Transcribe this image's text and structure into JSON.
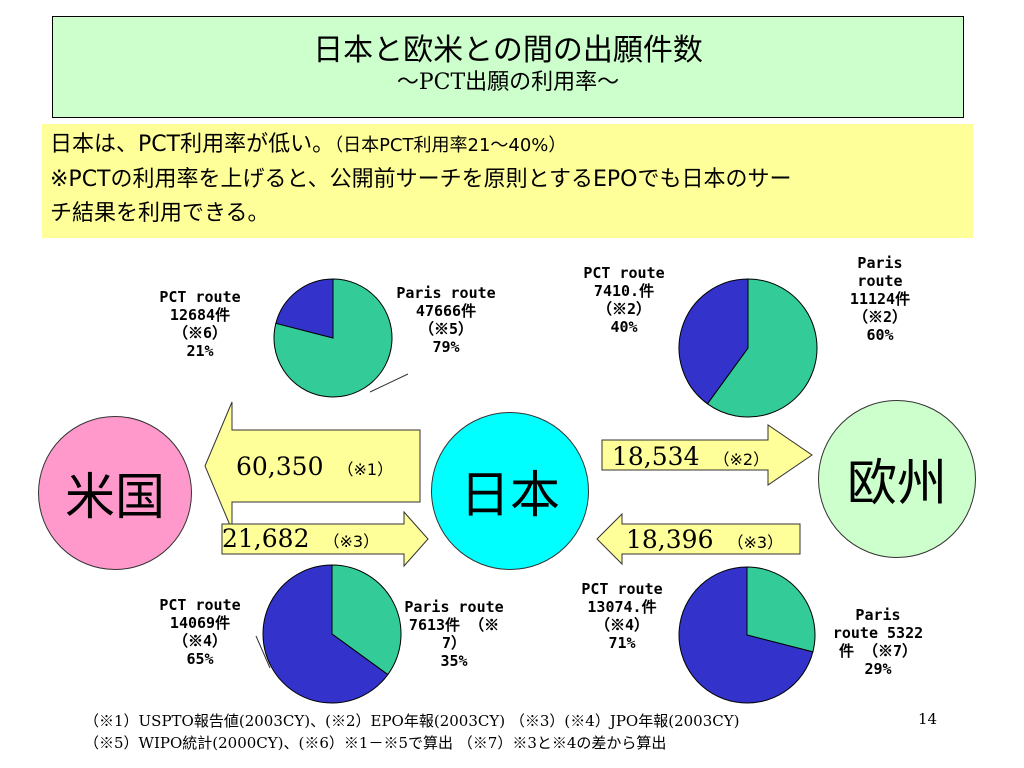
{
  "title": {
    "main": "日本と欧米との間の出願件数",
    "sub": "～PCT出願の利用率～"
  },
  "note": {
    "line1": "日本は、PCT利用率が低い。",
    "line1_small": "（日本PCT利用率21～40%）",
    "line2": "※PCTの利用率を上げると、公開前サーチを原則とするEPOでも日本のサー",
    "line3": "チ結果を利用できる。"
  },
  "nodes": {
    "us": "米国",
    "japan": "日本",
    "europe": "欧州"
  },
  "flows": {
    "jp_to_us": {
      "value": "60,350",
      "ref": "（※1）"
    },
    "us_to_jp": {
      "value": "21,682",
      "ref": "（※3）"
    },
    "jp_to_eu": {
      "value": "18,534",
      "ref": "（※2）"
    },
    "eu_to_jp": {
      "value": "18,396",
      "ref": "（※3）"
    }
  },
  "pies": {
    "jp_to_us": {
      "colors": {
        "pct": "#3333cc",
        "paris": "#33cc99"
      },
      "pct_fraction": 0.21,
      "pct_label": [
        "PCT route",
        "12684件",
        "（※6）",
        "21%"
      ],
      "paris_label": [
        "Paris route",
        "47666件",
        "（※5）",
        "79%"
      ]
    },
    "jp_to_eu": {
      "colors": {
        "pct": "#3333cc",
        "paris": "#33cc99"
      },
      "pct_fraction": 0.4,
      "pct_label": [
        "PCT route",
        "7410.件",
        "（※2）",
        "40%"
      ],
      "paris_label": [
        "Paris",
        "route",
        "11124件",
        "（※2）",
        "60%"
      ]
    },
    "us_to_jp": {
      "colors": {
        "pct": "#3333cc",
        "paris": "#33cc99"
      },
      "pct_fraction": 0.65,
      "pct_label": [
        "PCT route",
        "14069件",
        "（※4）",
        "65%"
      ],
      "paris_label": [
        "Paris route",
        "7613件 （※",
        "7）",
        "35%"
      ]
    },
    "eu_to_jp": {
      "colors": {
        "pct": "#3333cc",
        "paris": "#33cc99"
      },
      "pct_fraction": 0.71,
      "pct_label": [
        "PCT route",
        "13074.件",
        "（※4）",
        "71%"
      ],
      "paris_label": [
        "Paris",
        "route 5322",
        "件 （※7）",
        "29%"
      ]
    }
  },
  "footer": {
    "line1": "（※1）USPTO報告値(2003CY)、(※2）EPO年報(2003CY) （※3）(※4）JPO年報(2003CY)",
    "line2": "（※5）WIPO統計(2000CY)、(※6）※1－※5で算出 （※7）※3と※4の差から算出"
  },
  "page_number": "14"
}
